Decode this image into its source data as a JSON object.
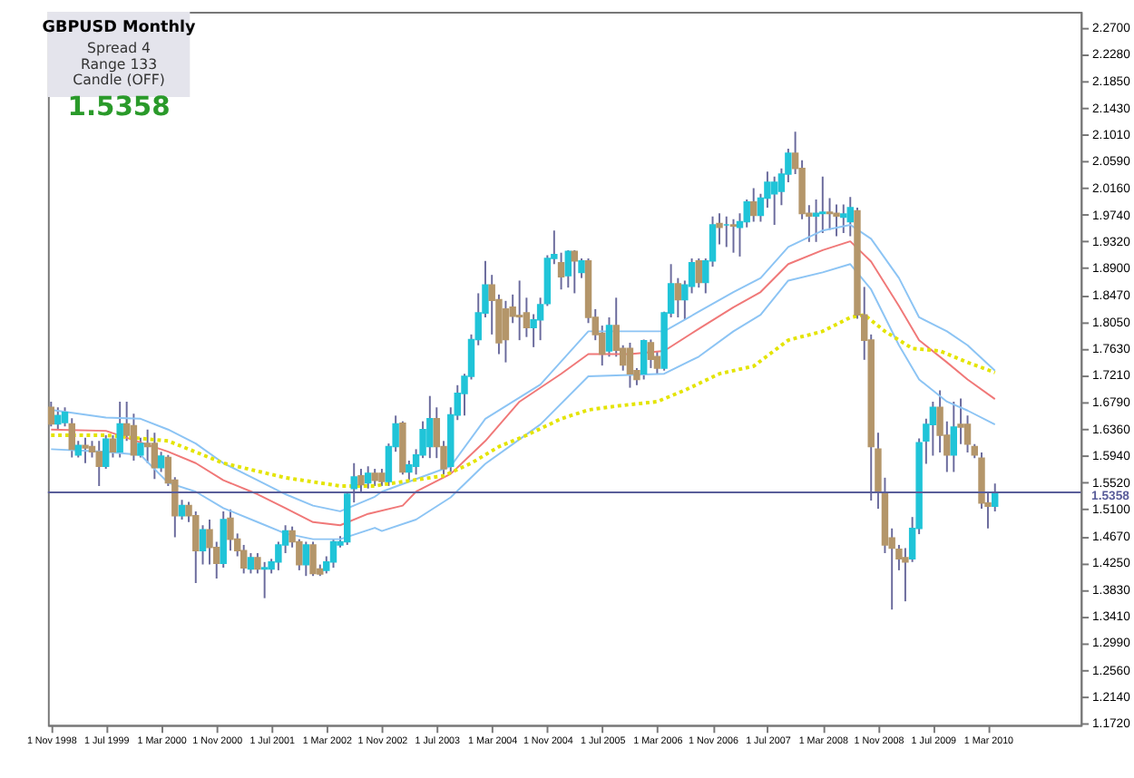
{
  "chart_data": {
    "type": "candlestick",
    "title": "GBPUSD  Monthly",
    "annotations": [
      "Spread  4",
      "Range  133",
      "Candle  (OFF)",
      "1.5358"
    ],
    "x": [
      "1998-11",
      "1998-12",
      "1999-01",
      "1999-02",
      "1999-03",
      "1999-04",
      "1999-05",
      "1999-06",
      "1999-07",
      "1999-08",
      "1999-09",
      "1999-10",
      "1999-11",
      "1999-12",
      "2000-01",
      "2000-02",
      "2000-03",
      "2000-04",
      "2000-05",
      "2000-06",
      "2000-07",
      "2000-08",
      "2000-09",
      "2000-10",
      "2000-11",
      "2000-12",
      "2001-01",
      "2001-02",
      "2001-03",
      "2001-04",
      "2001-05",
      "2001-06",
      "2001-07",
      "2001-08",
      "2001-09",
      "2001-10",
      "2001-11",
      "2001-12",
      "2002-01",
      "2002-02",
      "2002-03",
      "2002-04",
      "2002-05",
      "2002-06",
      "2002-07",
      "2002-08",
      "2002-09",
      "2002-10",
      "2002-11",
      "2002-12",
      "2003-01",
      "2003-02",
      "2003-03",
      "2003-04",
      "2003-05",
      "2003-06",
      "2003-07",
      "2003-08",
      "2003-09",
      "2003-10",
      "2003-11",
      "2003-12",
      "2004-01",
      "2004-02",
      "2004-03",
      "2004-04",
      "2004-05",
      "2004-06",
      "2004-07",
      "2004-08",
      "2004-09",
      "2004-10",
      "2004-11",
      "2004-12",
      "2005-01",
      "2005-02",
      "2005-03",
      "2005-04",
      "2005-05",
      "2005-06",
      "2005-07",
      "2005-08",
      "2005-09",
      "2005-10",
      "2005-11",
      "2005-12",
      "2006-01",
      "2006-02",
      "2006-03",
      "2006-04",
      "2006-05",
      "2006-06",
      "2006-07",
      "2006-08",
      "2006-09",
      "2006-10",
      "2006-11",
      "2006-12",
      "2007-01",
      "2007-02",
      "2007-03",
      "2007-04",
      "2007-05",
      "2007-06",
      "2007-07",
      "2007-08",
      "2007-09",
      "2007-10",
      "2007-11",
      "2007-12",
      "2008-01",
      "2008-02",
      "2008-03",
      "2008-04",
      "2008-05",
      "2008-06",
      "2008-07",
      "2008-08",
      "2008-09",
      "2008-10",
      "2008-11",
      "2008-12",
      "2009-01",
      "2009-02",
      "2009-03",
      "2009-04",
      "2009-05",
      "2009-06",
      "2009-07",
      "2009-08",
      "2009-09",
      "2009-10",
      "2009-11",
      "2009-12",
      "2010-01",
      "2010-02",
      "2010-03",
      "2010-04"
    ],
    "ohlc": [
      [
        1.67,
        1.679,
        1.64,
        1.644
      ],
      [
        1.644,
        1.67,
        1.635,
        1.657
      ],
      [
        1.646,
        1.67,
        1.64,
        1.662
      ],
      [
        1.644,
        1.653,
        1.591,
        1.604
      ],
      [
        1.595,
        1.617,
        1.591,
        1.61
      ],
      [
        1.61,
        1.622,
        1.582,
        1.606
      ],
      [
        1.608,
        1.617,
        1.591,
        1.6
      ],
      [
        1.6,
        1.617,
        1.546,
        1.577
      ],
      [
        1.577,
        1.626,
        1.573,
        1.62
      ],
      [
        1.62,
        1.626,
        1.591,
        1.6
      ],
      [
        1.6,
        1.679,
        1.591,
        1.644
      ],
      [
        1.644,
        1.679,
        1.617,
        1.626
      ],
      [
        1.641,
        1.66,
        1.586,
        1.595
      ],
      [
        1.595,
        1.622,
        1.591,
        1.613
      ],
      [
        1.613,
        1.635,
        1.582,
        1.608
      ],
      [
        1.613,
        1.63,
        1.557,
        1.575
      ],
      [
        1.575,
        1.6,
        1.568,
        1.593
      ],
      [
        1.591,
        1.595,
        1.546,
        1.551
      ],
      [
        1.555,
        1.56,
        1.465,
        1.499
      ],
      [
        1.499,
        1.524,
        1.493,
        1.515
      ],
      [
        1.515,
        1.521,
        1.489,
        1.499
      ],
      [
        1.499,
        1.506,
        1.393,
        1.444
      ],
      [
        1.444,
        1.484,
        1.422,
        1.477
      ],
      [
        1.477,
        1.493,
        1.422,
        1.449
      ],
      [
        1.449,
        1.458,
        1.4,
        1.424
      ],
      [
        1.424,
        1.506,
        1.417,
        1.493
      ],
      [
        1.495,
        1.509,
        1.444,
        1.462
      ],
      [
        1.462,
        1.471,
        1.435,
        1.444
      ],
      [
        1.444,
        1.453,
        1.408,
        1.417
      ],
      [
        1.415,
        1.44,
        1.408,
        1.433
      ],
      [
        1.433,
        1.44,
        1.408,
        1.415
      ],
      [
        1.415,
        1.426,
        1.369,
        1.417
      ],
      [
        1.415,
        1.431,
        1.408,
        1.426
      ],
      [
        1.426,
        1.458,
        1.413,
        1.453
      ],
      [
        1.453,
        1.484,
        1.44,
        1.475
      ],
      [
        1.475,
        1.482,
        1.449,
        1.458
      ],
      [
        1.458,
        1.462,
        1.413,
        1.422
      ],
      [
        1.422,
        1.458,
        1.404,
        1.453
      ],
      [
        1.453,
        1.458,
        1.404,
        1.408
      ],
      [
        1.415,
        1.422,
        1.404,
        1.407
      ],
      [
        1.413,
        1.435,
        1.408,
        1.426
      ],
      [
        1.426,
        1.462,
        1.417,
        1.458
      ],
      [
        1.453,
        1.467,
        1.449,
        1.458
      ],
      [
        1.458,
        1.537,
        1.453,
        1.533
      ],
      [
        1.542,
        1.582,
        1.52,
        1.56
      ],
      [
        1.562,
        1.573,
        1.537,
        1.548
      ],
      [
        1.551,
        1.577,
        1.542,
        1.566
      ],
      [
        1.566,
        1.573,
        1.546,
        1.555
      ],
      [
        1.566,
        1.573,
        1.546,
        1.553
      ],
      [
        1.553,
        1.613,
        1.546,
        1.608
      ],
      [
        1.608,
        1.657,
        1.6,
        1.644
      ],
      [
        1.645,
        1.648,
        1.564,
        1.568
      ],
      [
        1.568,
        1.586,
        1.555,
        1.579
      ],
      [
        1.577,
        1.604,
        1.564,
        1.595
      ],
      [
        1.595,
        1.648,
        1.59,
        1.635
      ],
      [
        1.608,
        1.688,
        1.59,
        1.652
      ],
      [
        1.652,
        1.67,
        1.59,
        1.608
      ],
      [
        1.608,
        1.617,
        1.564,
        1.573
      ],
      [
        1.577,
        1.67,
        1.568,
        1.658
      ],
      [
        1.658,
        1.705,
        1.65,
        1.692
      ],
      [
        1.692,
        1.723,
        1.657,
        1.719
      ],
      [
        1.719,
        1.785,
        1.714,
        1.777
      ],
      [
        1.777,
        1.85,
        1.768,
        1.819
      ],
      [
        1.819,
        1.901,
        1.812,
        1.863
      ],
      [
        1.863,
        1.879,
        1.785,
        1.839
      ],
      [
        1.84,
        1.848,
        1.754,
        1.772
      ],
      [
        1.825,
        1.838,
        1.741,
        1.777
      ],
      [
        1.828,
        1.848,
        1.803,
        1.814
      ],
      [
        1.815,
        1.87,
        1.776,
        1.813
      ],
      [
        1.819,
        1.843,
        1.781,
        1.796
      ],
      [
        1.796,
        1.817,
        1.765,
        1.808
      ],
      [
        1.808,
        1.843,
        1.776,
        1.832
      ],
      [
        1.834,
        1.91,
        1.83,
        1.905
      ],
      [
        1.905,
        1.949,
        1.896,
        1.911
      ],
      [
        1.898,
        1.914,
        1.856,
        1.876
      ],
      [
        1.878,
        1.918,
        1.859,
        1.916
      ],
      [
        1.916,
        1.918,
        1.85,
        1.901
      ],
      [
        1.883,
        1.905,
        1.874,
        1.901
      ],
      [
        1.901,
        1.905,
        1.803,
        1.812
      ],
      [
        1.812,
        1.825,
        1.776,
        1.785
      ],
      [
        1.787,
        1.799,
        1.736,
        1.754
      ],
      [
        1.759,
        1.812,
        1.75,
        1.799
      ],
      [
        1.799,
        1.843,
        1.75,
        1.76
      ],
      [
        1.763,
        1.768,
        1.728,
        1.737
      ],
      [
        1.763,
        1.772,
        1.701,
        1.723
      ],
      [
        1.728,
        1.732,
        1.705,
        1.714
      ],
      [
        1.723,
        1.777,
        1.714,
        1.775
      ],
      [
        1.772,
        1.777,
        1.732,
        1.746
      ],
      [
        1.75,
        1.759,
        1.723,
        1.732
      ],
      [
        1.732,
        1.821,
        1.728,
        1.819
      ],
      [
        1.819,
        1.896,
        1.812,
        1.865
      ],
      [
        1.865,
        1.874,
        1.812,
        1.84
      ],
      [
        1.84,
        1.87,
        1.808,
        1.863
      ],
      [
        1.861,
        1.905,
        1.85,
        1.898
      ],
      [
        1.901,
        1.905,
        1.859,
        1.867
      ],
      [
        1.867,
        1.905,
        1.85,
        1.901
      ],
      [
        1.901,
        1.971,
        1.892,
        1.958
      ],
      [
        1.96,
        1.976,
        1.927,
        1.954
      ],
      [
        1.958,
        1.971,
        1.923,
        1.958
      ],
      [
        1.958,
        1.967,
        1.914,
        1.956
      ],
      [
        1.954,
        1.976,
        1.908,
        1.963
      ],
      [
        1.963,
        1.998,
        1.954,
        1.994
      ],
      [
        1.994,
        2.016,
        1.963,
        1.973
      ],
      [
        1.973,
        2.007,
        1.963,
        2.0
      ],
      [
        2.0,
        2.042,
        1.985,
        2.025
      ],
      [
        2.007,
        2.034,
        1.958,
        2.025
      ],
      [
        2.011,
        2.047,
        1.989,
        2.038
      ],
      [
        2.038,
        2.078,
        2.025,
        2.071
      ],
      [
        2.071,
        2.105,
        2.038,
        2.047
      ],
      [
        2.047,
        2.06,
        1.967,
        1.976
      ],
      [
        1.976,
        1.989,
        1.931,
        1.972
      ],
      [
        1.972,
        1.998,
        1.931,
        1.976
      ],
      [
        1.976,
        2.034,
        1.945,
        1.978
      ],
      [
        1.978,
        2.0,
        1.95,
        1.976
      ],
      [
        1.976,
        1.99,
        1.94,
        1.972
      ],
      [
        1.97,
        1.99,
        1.945,
        1.975
      ],
      [
        1.963,
        2.002,
        1.94,
        1.985
      ],
      [
        1.98,
        1.985,
        1.81,
        1.816
      ],
      [
        1.816,
        1.86,
        1.745,
        1.776
      ],
      [
        1.776,
        1.785,
        1.523,
        1.608
      ],
      [
        1.604,
        1.63,
        1.51,
        1.537
      ],
      [
        1.535,
        1.559,
        1.44,
        1.453
      ],
      [
        1.464,
        1.479,
        1.351,
        1.448
      ],
      [
        1.446,
        1.453,
        1.413,
        1.431
      ],
      [
        1.433,
        1.448,
        1.364,
        1.426
      ],
      [
        1.431,
        1.497,
        1.426,
        1.479
      ],
      [
        1.479,
        1.621,
        1.47,
        1.614
      ],
      [
        1.617,
        1.652,
        1.581,
        1.643
      ],
      [
        1.643,
        1.679,
        1.594,
        1.67
      ],
      [
        1.67,
        1.697,
        1.599,
        1.626
      ],
      [
        1.626,
        1.648,
        1.568,
        1.595
      ],
      [
        1.595,
        1.679,
        1.568,
        1.639
      ],
      [
        1.643,
        1.684,
        1.612,
        1.639
      ],
      [
        1.643,
        1.657,
        1.599,
        1.612
      ],
      [
        1.608,
        1.612,
        1.59,
        1.595
      ],
      [
        1.59,
        1.599,
        1.51,
        1.519
      ],
      [
        1.519,
        1.537,
        1.479,
        1.514
      ],
      [
        1.514,
        1.55,
        1.506,
        1.536
      ]
    ],
    "series": [
      {
        "type": "line",
        "color": "#8cc4f4",
        "line_style": "solid",
        "x": [
          "1998-11",
          "1999-07",
          "1999-12",
          "2000-04",
          "2000-08",
          "2000-12",
          "2001-05",
          "2001-09",
          "2002-01",
          "2002-05",
          "2002-10",
          "2002-11",
          "2003-09",
          "2004-02",
          "2004-10",
          "2005-05",
          "2005-11",
          "2006-04",
          "2006-09",
          "2007-02",
          "2007-06",
          "2007-10",
          "2008-03",
          "2008-07",
          "2008-10",
          "2009-02",
          "2009-05",
          "2009-09",
          "2009-12",
          "2010-04"
        ],
        "values": [
          1.666,
          1.654,
          1.652,
          1.635,
          1.613,
          1.582,
          1.555,
          1.533,
          1.515,
          1.506,
          1.529,
          1.537,
          1.577,
          1.652,
          1.706,
          1.79,
          1.79,
          1.79,
          1.821,
          1.852,
          1.874,
          1.923,
          1.949,
          1.958,
          1.936,
          1.874,
          1.812,
          1.79,
          1.768,
          1.728
        ]
      },
      {
        "type": "line",
        "color": "#f07878",
        "line_style": "solid",
        "x": [
          "1998-11",
          "1999-07",
          "2000-04",
          "2000-08",
          "2000-12",
          "2001-05",
          "2001-09",
          "2002-01",
          "2002-05",
          "2002-09",
          "2003-02",
          "2003-04",
          "2003-09",
          "2004-02",
          "2004-07",
          "2005-01",
          "2005-05",
          "2005-11",
          "2006-04",
          "2006-09",
          "2007-02",
          "2007-06",
          "2007-10",
          "2008-03",
          "2008-07",
          "2008-10",
          "2009-02",
          "2009-05",
          "2009-09",
          "2009-12",
          "2010-04"
        ],
        "values": [
          1.635,
          1.633,
          1.6,
          1.582,
          1.555,
          1.533,
          1.511,
          1.489,
          1.484,
          1.502,
          1.515,
          1.537,
          1.565,
          1.617,
          1.679,
          1.723,
          1.754,
          1.754,
          1.759,
          1.794,
          1.828,
          1.852,
          1.896,
          1.918,
          1.932,
          1.9,
          1.83,
          1.776,
          1.741,
          1.714,
          1.683
        ]
      },
      {
        "type": "line",
        "color": "#8cc4f4",
        "line_style": "solid",
        "x": [
          "1998-11",
          "1999-07",
          "1999-12",
          "2000-04",
          "2000-08",
          "2000-12",
          "2001-05",
          "2001-09",
          "2002-01",
          "2002-05",
          "2002-10",
          "2002-11",
          "2003-04",
          "2003-09",
          "2004-02",
          "2004-10",
          "2005-05",
          "2005-11",
          "2006-04",
          "2006-09",
          "2007-02",
          "2007-06",
          "2007-10",
          "2008-03",
          "2008-07",
          "2008-10",
          "2009-02",
          "2009-05",
          "2009-09",
          "2009-12",
          "2010-04"
        ],
        "values": [
          1.604,
          1.6,
          1.595,
          1.551,
          1.537,
          1.511,
          1.489,
          1.471,
          1.462,
          1.462,
          1.48,
          1.475,
          1.493,
          1.528,
          1.581,
          1.643,
          1.719,
          1.721,
          1.723,
          1.75,
          1.79,
          1.816,
          1.87,
          1.883,
          1.896,
          1.856,
          1.768,
          1.714,
          1.679,
          1.665,
          1.643
        ]
      },
      {
        "type": "line",
        "color": "#e4e400",
        "line_style": "dotted",
        "x": [
          "1998-11",
          "1999-07",
          "2000-04",
          "2000-12",
          "2001-09",
          "2002-05",
          "2002-10",
          "2002-11",
          "2003-08",
          "2003-12",
          "2004-04",
          "2004-08",
          "2005-01",
          "2005-05",
          "2005-09",
          "2006-03",
          "2006-07",
          "2006-12",
          "2007-05",
          "2007-10",
          "2008-03",
          "2008-07",
          "2008-09",
          "2008-12",
          "2009-04",
          "2009-08",
          "2009-12",
          "2010-04"
        ],
        "values": [
          1.626,
          1.626,
          1.617,
          1.582,
          1.559,
          1.546,
          1.546,
          1.548,
          1.562,
          1.582,
          1.608,
          1.626,
          1.652,
          1.666,
          1.672,
          1.679,
          1.697,
          1.723,
          1.735,
          1.776,
          1.79,
          1.812,
          1.816,
          1.79,
          1.763,
          1.759,
          1.741,
          1.725
        ]
      }
    ],
    "ref_lines": [
      {
        "axis": "y",
        "value": 1.5358,
        "label": "1.5358",
        "color": "#5a5e9a"
      }
    ],
    "xlim": [
      "1998-10-18",
      "2011-04-15"
    ],
    "xticks": [
      {
        "value": "1998-11",
        "label": "1 Nov 1998"
      },
      {
        "value": "1999-07",
        "label": "1 Jul 1999"
      },
      {
        "value": "2000-03",
        "label": "1 Mar 2000"
      },
      {
        "value": "2000-11",
        "label": "1 Nov 2000"
      },
      {
        "value": "2001-07",
        "label": "1 Jul 2001"
      },
      {
        "value": "2002-03",
        "label": "1 Mar 2002"
      },
      {
        "value": "2002-11",
        "label": "1 Nov 2002"
      },
      {
        "value": "2003-07",
        "label": "1 Jul 2003"
      },
      {
        "value": "2004-03",
        "label": "1 Mar 2004"
      },
      {
        "value": "2004-11",
        "label": "1 Nov 2004"
      },
      {
        "value": "2005-07",
        "label": "1 Jul 2005"
      },
      {
        "value": "2006-03",
        "label": "1 Mar 2006"
      },
      {
        "value": "2006-11",
        "label": "1 Nov 2006"
      },
      {
        "value": "2007-07",
        "label": "1 Jul 2007"
      },
      {
        "value": "2008-03",
        "label": "1 Mar 2008"
      },
      {
        "value": "2008-11",
        "label": "1 Nov 2008"
      },
      {
        "value": "2009-07",
        "label": "1 Jul 2009"
      },
      {
        "value": "2010-03",
        "label": "1 Mar 2010"
      }
    ],
    "ylim": [
      1.169,
      2.294
    ],
    "yticks": [
      {
        "value": 1.172,
        "label": "1.1720"
      },
      {
        "value": 1.214,
        "label": "1.2140"
      },
      {
        "value": 1.256,
        "label": "1.2560"
      },
      {
        "value": 1.299,
        "label": "1.2990"
      },
      {
        "value": 1.341,
        "label": "1.3410"
      },
      {
        "value": 1.383,
        "label": "1.3830"
      },
      {
        "value": 1.425,
        "label": "1.4250"
      },
      {
        "value": 1.467,
        "label": "1.4670"
      },
      {
        "value": 1.51,
        "label": "1.5100"
      },
      {
        "value": 1.552,
        "label": "1.5520"
      },
      {
        "value": 1.594,
        "label": "1.5940"
      },
      {
        "value": 1.636,
        "label": "1.6360"
      },
      {
        "value": 1.679,
        "label": "1.6790"
      },
      {
        "value": 1.721,
        "label": "1.7210"
      },
      {
        "value": 1.763,
        "label": "1.7630"
      },
      {
        "value": 1.805,
        "label": "1.8050"
      },
      {
        "value": 1.847,
        "label": "1.8470"
      },
      {
        "value": 1.89,
        "label": "1.8900"
      },
      {
        "value": 1.932,
        "label": "1.9320"
      },
      {
        "value": 1.974,
        "label": "1.9740"
      },
      {
        "value": 2.016,
        "label": "2.0160"
      },
      {
        "value": 2.059,
        "label": "2.0590"
      },
      {
        "value": 2.101,
        "label": "2.1010"
      },
      {
        "value": 2.143,
        "label": "2.1430"
      },
      {
        "value": 2.185,
        "label": "2.1850"
      },
      {
        "value": 2.228,
        "label": "2.2280"
      },
      {
        "value": 2.27,
        "label": "2.2700"
      }
    ],
    "grid": false
  }
}
